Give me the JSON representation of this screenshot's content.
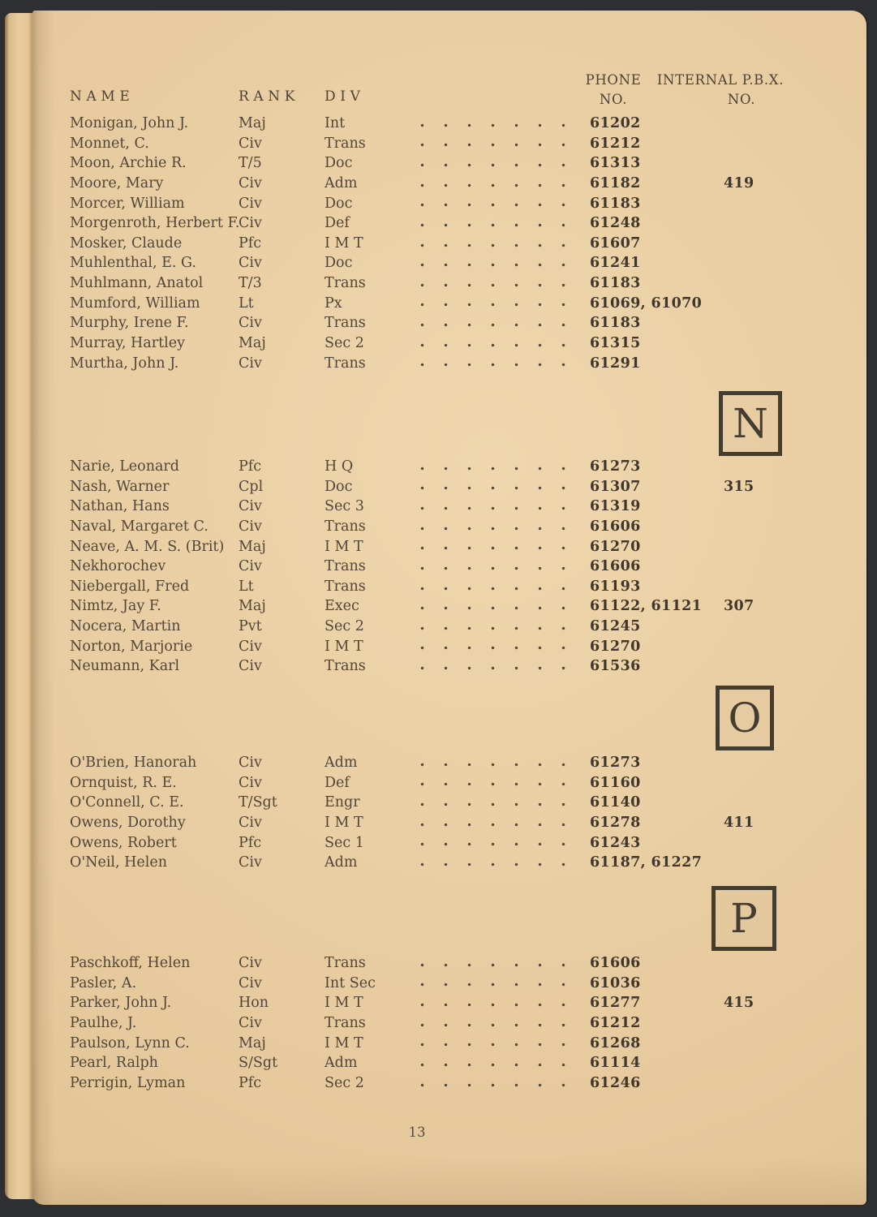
{
  "page": {
    "number": "13",
    "colors": {
      "paper": "#e9cda2",
      "ink": "#50463a",
      "background": "#2e2f33"
    },
    "headers": {
      "name": "NAME",
      "rank": "RANK",
      "div": "DIV",
      "phone_line1": "PHONE",
      "phone_line2": "NO.",
      "pbx_line1": "INTERNAL P.B.X.",
      "pbx_line2": "NO."
    },
    "sections": [
      {
        "letter": "",
        "entries": [
          {
            "name": "Monigan, John J.",
            "rank": "Maj",
            "div": "Int",
            "phone": "61202",
            "pbx": ""
          },
          {
            "name": "Monnet, C.",
            "rank": "Civ",
            "div": "Trans",
            "phone": "61212",
            "pbx": ""
          },
          {
            "name": "Moon, Archie R.",
            "rank": "T/5",
            "div": "Doc",
            "phone": "61313",
            "pbx": ""
          },
          {
            "name": "Moore, Mary",
            "rank": "Civ",
            "div": "Adm",
            "phone": "61182",
            "pbx": "419"
          },
          {
            "name": "Morcer, William",
            "rank": "Civ",
            "div": "Doc",
            "phone": "61183",
            "pbx": ""
          },
          {
            "name": "Morgenroth, Herbert F.",
            "rank": "Civ",
            "div": "Def",
            "phone": "61248",
            "pbx": ""
          },
          {
            "name": "Mosker, Claude",
            "rank": "Pfc",
            "div": "I M T",
            "phone": "61607",
            "pbx": ""
          },
          {
            "name": "Muhlenthal, E. G.",
            "rank": "Civ",
            "div": "Doc",
            "phone": "61241",
            "pbx": ""
          },
          {
            "name": "Muhlmann, Anatol",
            "rank": "T/3",
            "div": "Trans",
            "phone": "61183",
            "pbx": ""
          },
          {
            "name": "Mumford, William",
            "rank": "Lt",
            "div": "Px",
            "phone": "61069, 61070",
            "pbx": ""
          },
          {
            "name": "Murphy, Irene F.",
            "rank": "Civ",
            "div": "Trans",
            "phone": "61183",
            "pbx": ""
          },
          {
            "name": "Murray, Hartley",
            "rank": "Maj",
            "div": "Sec 2",
            "phone": "61315",
            "pbx": ""
          },
          {
            "name": "Murtha, John J.",
            "rank": "Civ",
            "div": "Trans",
            "phone": "61291",
            "pbx": ""
          }
        ]
      },
      {
        "letter": "N",
        "entries": [
          {
            "name": "Narie, Leonard",
            "rank": "Pfc",
            "div": "H Q",
            "phone": "61273",
            "pbx": ""
          },
          {
            "name": "Nash, Warner",
            "rank": "Cpl",
            "div": "Doc",
            "phone": "61307",
            "pbx": "315"
          },
          {
            "name": "Nathan, Hans",
            "rank": "Civ",
            "div": "Sec 3",
            "phone": "61319",
            "pbx": ""
          },
          {
            "name": "Naval, Margaret C.",
            "rank": "Civ",
            "div": "Trans",
            "phone": "61606",
            "pbx": ""
          },
          {
            "name": "Neave, A. M. S. (Brit)",
            "rank": "Maj",
            "div": "I M T",
            "phone": "61270",
            "pbx": ""
          },
          {
            "name": "Nekhorochev",
            "rank": "Civ",
            "div": "Trans",
            "phone": "61606",
            "pbx": ""
          },
          {
            "name": "Niebergall, Fred",
            "rank": "Lt",
            "div": "Trans",
            "phone": "61193",
            "pbx": ""
          },
          {
            "name": "Nimtz, Jay F.",
            "rank": "Maj",
            "div": "Exec",
            "phone": "61122, 61121",
            "pbx": "307"
          },
          {
            "name": "Nocera, Martin",
            "rank": "Pvt",
            "div": "Sec 2",
            "phone": "61245",
            "pbx": ""
          },
          {
            "name": "Norton, Marjorie",
            "rank": "Civ",
            "div": "I M T",
            "phone": "61270",
            "pbx": ""
          },
          {
            "name": "Neumann, Karl",
            "rank": "Civ",
            "div": "Trans",
            "phone": "61536",
            "pbx": ""
          }
        ]
      },
      {
        "letter": "O",
        "entries": [
          {
            "name": "O'Brien, Hanorah",
            "rank": "Civ",
            "div": "Adm",
            "phone": "61273",
            "pbx": ""
          },
          {
            "name": "Ornquist, R. E.",
            "rank": "Civ",
            "div": "Def",
            "phone": "61160",
            "pbx": ""
          },
          {
            "name": "O'Connell, C. E.",
            "rank": "T/Sgt",
            "div": "Engr",
            "phone": "61140",
            "pbx": ""
          },
          {
            "name": "Owens, Dorothy",
            "rank": "Civ",
            "div": "I M T",
            "phone": "61278",
            "pbx": "411"
          },
          {
            "name": "Owens, Robert",
            "rank": "Pfc",
            "div": "Sec 1",
            "phone": "61243",
            "pbx": ""
          },
          {
            "name": "O'Neil, Helen",
            "rank": "Civ",
            "div": "Adm",
            "phone": "61187, 61227",
            "pbx": ""
          }
        ]
      },
      {
        "letter": "P",
        "entries": [
          {
            "name": "Paschkoff, Helen",
            "rank": "Civ",
            "div": "Trans",
            "phone": "61606",
            "pbx": ""
          },
          {
            "name": "Pasler, A.",
            "rank": "Civ",
            "div": "Int Sec",
            "phone": "61036",
            "pbx": ""
          },
          {
            "name": "Parker, John J.",
            "rank": "Hon",
            "div": "I M T",
            "phone": "61277",
            "pbx": "415"
          },
          {
            "name": "Paulhe, J.",
            "rank": "Civ",
            "div": "Trans",
            "phone": "61212",
            "pbx": ""
          },
          {
            "name": "Paulson, Lynn C.",
            "rank": "Maj",
            "div": "I M T",
            "phone": "61268",
            "pbx": ""
          },
          {
            "name": "Pearl, Ralph",
            "rank": "S/Sgt",
            "div": "Adm",
            "phone": "61114",
            "pbx": ""
          },
          {
            "name": "Perrigin, Lyman",
            "rank": "Pfc",
            "div": "Sec 2",
            "phone": "61246",
            "pbx": ""
          }
        ]
      }
    ]
  }
}
